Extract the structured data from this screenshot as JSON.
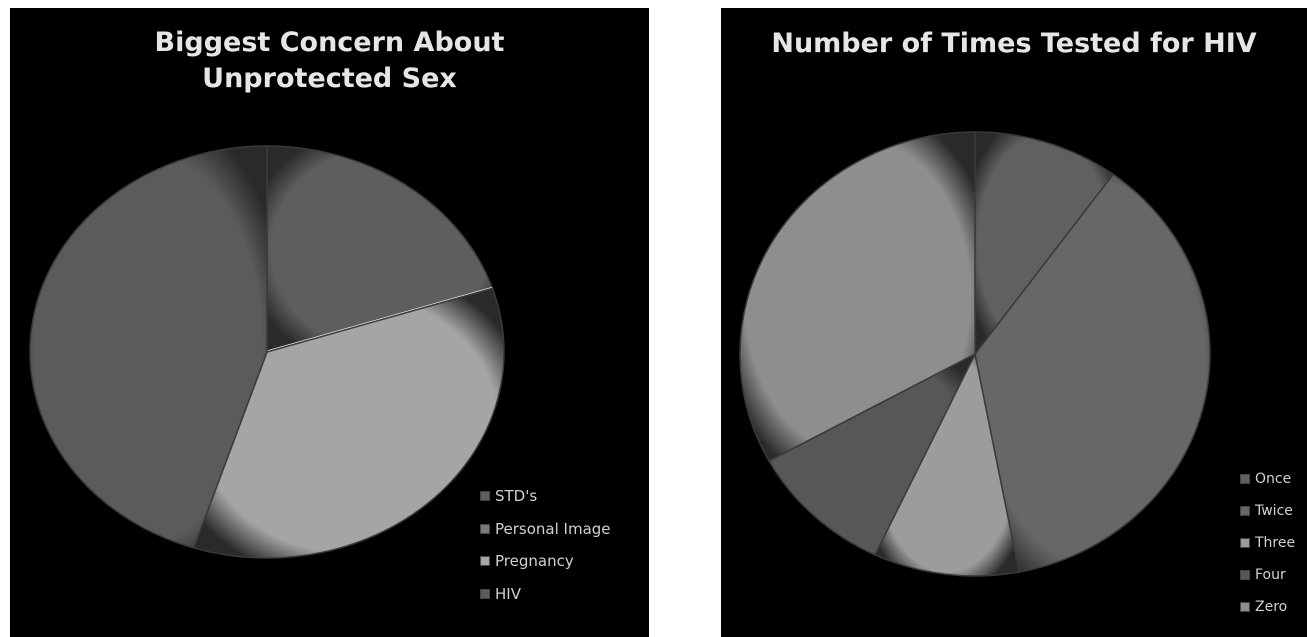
{
  "chart_data": [
    {
      "type": "pie",
      "title": "Biggest Concern About Unprotected Sex",
      "categories": [
        "STD's",
        "Personal Image",
        "Pregnancy",
        "HIV"
      ],
      "values": [
        20,
        0,
        35,
        45
      ],
      "colors": [
        "#5e5e5e",
        "#7a7a7a",
        "#a5a5a5",
        "#5b5b5b"
      ],
      "start_angle_deg": 0,
      "legend_position": "bottom-right"
    },
    {
      "type": "pie",
      "title": "Number of Times Tested for HIV",
      "categories": [
        "Once",
        "Twice",
        "Three",
        "Four",
        "Zero"
      ],
      "values": [
        10,
        37,
        10,
        10,
        33
      ],
      "colors": [
        "#606060",
        "#676767",
        "#9c9c9c",
        "#575757",
        "#8e8e8e"
      ],
      "start_angle_deg": 0,
      "legend_position": "bottom-right"
    }
  ]
}
